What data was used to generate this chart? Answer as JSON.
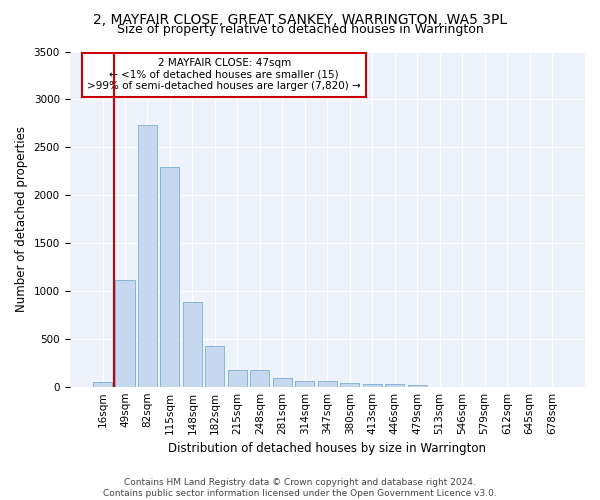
{
  "title": "2, MAYFAIR CLOSE, GREAT SANKEY, WARRINGTON, WA5 3PL",
  "subtitle": "Size of property relative to detached houses in Warrington",
  "xlabel": "Distribution of detached houses by size in Warrington",
  "ylabel": "Number of detached properties",
  "bar_color": "#c5d8f0",
  "bar_edge_color": "#7aafd4",
  "annotation_box_color": "#cc0000",
  "annotation_text_line1": "2 MAYFAIR CLOSE: 47sqm",
  "annotation_text_line2": "← <1% of detached houses are smaller (15)",
  "annotation_text_line3": ">99% of semi-detached houses are larger (7,820) →",
  "marker_line_color": "#cc0000",
  "categories": [
    "16sqm",
    "49sqm",
    "82sqm",
    "115sqm",
    "148sqm",
    "182sqm",
    "215sqm",
    "248sqm",
    "281sqm",
    "314sqm",
    "347sqm",
    "380sqm",
    "413sqm",
    "446sqm",
    "479sqm",
    "513sqm",
    "546sqm",
    "579sqm",
    "612sqm",
    "645sqm",
    "678sqm"
  ],
  "values": [
    50,
    1110,
    2730,
    2290,
    880,
    430,
    175,
    170,
    90,
    60,
    55,
    35,
    30,
    25,
    15,
    0,
    0,
    0,
    0,
    0,
    0
  ],
  "ylim": [
    0,
    3500
  ],
  "yticks": [
    0,
    500,
    1000,
    1500,
    2000,
    2500,
    3000,
    3500
  ],
  "footer_line1": "Contains HM Land Registry data © Crown copyright and database right 2024.",
  "footer_line2": "Contains public sector information licensed under the Open Government Licence v3.0.",
  "bg_color": "#ffffff",
  "plot_bg_color": "#eef2fb",
  "title_fontsize": 10,
  "subtitle_fontsize": 9,
  "axis_label_fontsize": 8.5,
  "tick_fontsize": 7.5,
  "annotation_fontsize": 7.5,
  "footer_fontsize": 6.5
}
